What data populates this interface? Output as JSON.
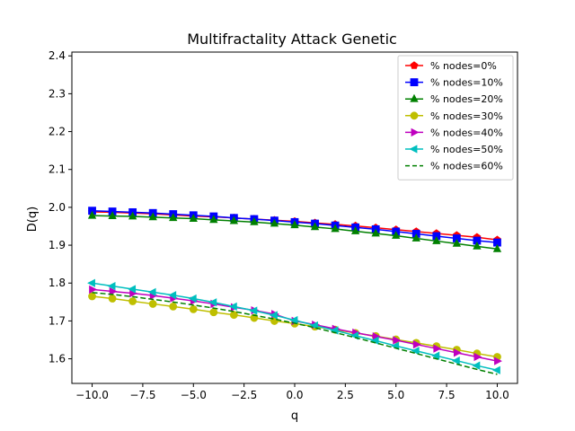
{
  "chart_data": {
    "type": "line",
    "title": "Multifractality Attack Genetic",
    "xlabel": "q",
    "ylabel": "D(q)",
    "xlim": [
      -11,
      11
    ],
    "ylim": [
      1.535,
      2.41
    ],
    "xticks": [
      -10.0,
      -7.5,
      -5.0,
      -2.5,
      0.0,
      2.5,
      5.0,
      7.5,
      10.0
    ],
    "xtick_labels": [
      "−10.0",
      "−7.5",
      "−5.0",
      "−2.5",
      "0.0",
      "2.5",
      "5.0",
      "7.5",
      "10.0"
    ],
    "yticks": [
      1.6,
      1.7,
      1.8,
      1.9,
      2.0,
      2.1,
      2.2,
      2.3,
      2.4
    ],
    "ytick_labels": [
      "1.6",
      "1.7",
      "1.8",
      "1.9",
      "2.0",
      "2.1",
      "2.2",
      "2.3",
      "2.4"
    ],
    "grid": false,
    "legend_position": "top-right",
    "x": [
      -10,
      -9,
      -8,
      -7,
      -6,
      -5,
      -4,
      -3,
      -2,
      -1,
      0,
      1,
      2,
      3,
      4,
      5,
      6,
      7,
      8,
      9,
      10
    ],
    "series": [
      {
        "name": "% nodes=0%",
        "color": "#ff0000",
        "marker": "pentagon",
        "linestyle": "solid",
        "values": [
          1.988,
          1.987,
          1.985,
          1.983,
          1.98,
          1.977,
          1.975,
          1.972,
          1.969,
          1.966,
          1.963,
          1.959,
          1.955,
          1.951,
          1.946,
          1.941,
          1.936,
          1.931,
          1.926,
          1.921,
          1.914
        ]
      },
      {
        "name": "% nodes=10%",
        "color": "#0000ff",
        "marker": "square",
        "linestyle": "solid",
        "values": [
          1.991,
          1.989,
          1.987,
          1.985,
          1.982,
          1.979,
          1.976,
          1.972,
          1.969,
          1.965,
          1.961,
          1.957,
          1.952,
          1.947,
          1.942,
          1.936,
          1.93,
          1.924,
          1.918,
          1.912,
          1.907
        ]
      },
      {
        "name": "% nodes=20%",
        "color": "#008000",
        "marker": "triangle-up",
        "linestyle": "solid",
        "values": [
          1.978,
          1.977,
          1.976,
          1.974,
          1.972,
          1.97,
          1.967,
          1.964,
          1.961,
          1.957,
          1.953,
          1.948,
          1.943,
          1.937,
          1.931,
          1.925,
          1.918,
          1.911,
          1.904,
          1.897,
          1.89
        ]
      },
      {
        "name": "% nodes=30%",
        "color": "#bfbf00",
        "marker": "circle",
        "linestyle": "solid",
        "values": [
          1.765,
          1.759,
          1.752,
          1.745,
          1.738,
          1.731,
          1.723,
          1.716,
          1.708,
          1.7,
          1.693,
          1.685,
          1.677,
          1.668,
          1.66,
          1.651,
          1.642,
          1.633,
          1.624,
          1.614,
          1.605
        ]
      },
      {
        "name": "% nodes=40%",
        "color": "#bf00bf",
        "marker": "triangle-right",
        "linestyle": "solid",
        "values": [
          1.783,
          1.778,
          1.773,
          1.767,
          1.76,
          1.753,
          1.745,
          1.736,
          1.728,
          1.718,
          1.7,
          1.69,
          1.679,
          1.669,
          1.659,
          1.649,
          1.638,
          1.627,
          1.616,
          1.605,
          1.594
        ]
      },
      {
        "name": "% nodes=50%",
        "color": "#00bfbf",
        "marker": "triangle-left",
        "linestyle": "solid",
        "values": [
          1.8,
          1.792,
          1.784,
          1.776,
          1.768,
          1.759,
          1.749,
          1.738,
          1.727,
          1.715,
          1.702,
          1.688,
          1.675,
          1.661,
          1.648,
          1.634,
          1.621,
          1.608,
          1.595,
          1.582,
          1.57
        ]
      },
      {
        "name": "% nodes=60%",
        "color": "#008000",
        "marker": "none",
        "linestyle": "dashed",
        "values": [
          1.775,
          1.77,
          1.764,
          1.757,
          1.75,
          1.742,
          1.734,
          1.725,
          1.715,
          1.705,
          1.694,
          1.682,
          1.669,
          1.656,
          1.642,
          1.628,
          1.614,
          1.6,
          1.586,
          1.572,
          1.559
        ]
      }
    ]
  }
}
